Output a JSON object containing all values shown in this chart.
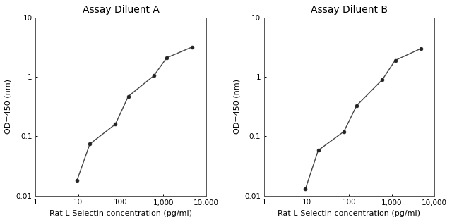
{
  "panel_A": {
    "title": "Assay Diluent A",
    "x": [
      9.375,
      18.75,
      75,
      150,
      600,
      1200,
      4800
    ],
    "y": [
      0.018,
      0.074,
      0.16,
      0.47,
      1.05,
      2.1,
      3.2
    ],
    "xlim": [
      1,
      10000
    ],
    "ylim": [
      0.01,
      10
    ],
    "xlabel": "Rat L-Selectin concentration (pg/ml)",
    "ylabel": "OD=450 (nm)"
  },
  "panel_B": {
    "title": "Assay Diluent B",
    "x": [
      9.375,
      18.75,
      75,
      150,
      600,
      1200,
      4800
    ],
    "y": [
      0.013,
      0.058,
      0.12,
      0.33,
      0.9,
      1.9,
      3.0
    ],
    "xlim": [
      1,
      10000
    ],
    "ylim": [
      0.01,
      10
    ],
    "xlabel": "Rat L-Selectin concentration (pg/ml)",
    "ylabel": "OD=450 (nm)"
  },
  "xticks": [
    1,
    10,
    100,
    1000,
    10000
  ],
  "xticklabels": [
    "1",
    "10",
    "100",
    "1,000",
    "10,000"
  ],
  "yticks": [
    0.01,
    0.1,
    1,
    10
  ],
  "yticklabels": [
    "0.01",
    "0.1",
    "1",
    "10"
  ],
  "line_color": "#444444",
  "marker": "o",
  "marker_size": 3.5,
  "marker_color": "#222222",
  "line_width": 1.0,
  "title_fontsize": 10,
  "label_fontsize": 8,
  "tick_fontsize": 7.5,
  "background_color": "#ffffff"
}
